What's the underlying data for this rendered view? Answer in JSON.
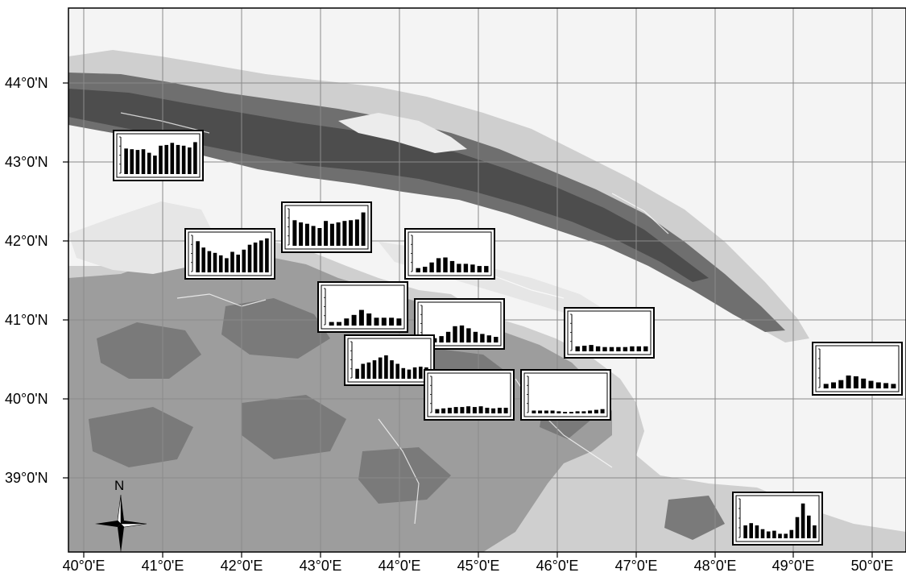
{
  "map": {
    "lat_labels": [
      "44°0'N",
      "43°0'N",
      "42°0'N",
      "41°0'N",
      "40°0'N",
      "39°0'N"
    ],
    "lon_labels": [
      "40°0'E",
      "41°0'E",
      "42°0'E",
      "43°0'E",
      "44°0'E",
      "45°0'E",
      "46°0'E",
      "47°0'E",
      "48°0'E",
      "49°0'E",
      "50°0'E"
    ],
    "north_arrow_label": "N",
    "colors": {
      "lowland": "#f4f4f4",
      "foothill": "#cfcfcf",
      "upland": "#9d9d9d",
      "mountain": "#6f6f6f",
      "peak": "#4d4d4d",
      "grid": "#8a8a8a",
      "bars": "#000000"
    }
  },
  "station_charts": [
    {
      "id": "st1",
      "values": [
        0.72,
        0.7,
        0.68,
        0.7,
        0.6,
        0.52,
        0.8,
        0.82,
        0.88,
        0.82,
        0.8,
        0.75,
        0.9
      ]
    },
    {
      "id": "st2",
      "values": [
        0.88,
        0.7,
        0.6,
        0.55,
        0.48,
        0.4,
        0.58,
        0.5,
        0.64,
        0.78,
        0.84,
        0.9,
        0.96
      ]
    },
    {
      "id": "st3",
      "values": [
        0.72,
        0.66,
        0.62,
        0.56,
        0.5,
        0.7,
        0.62,
        0.66,
        0.7,
        0.72,
        0.74,
        0.94
      ]
    },
    {
      "id": "st4",
      "values": [
        0.12,
        0.16,
        0.28,
        0.4,
        0.42,
        0.32,
        0.24,
        0.24,
        0.22,
        0.18,
        0.18
      ]
    },
    {
      "id": "st5",
      "values": [
        0.1,
        0.1,
        0.2,
        0.3,
        0.44,
        0.34,
        0.22,
        0.22,
        0.22,
        0.2
      ]
    },
    {
      "id": "st6",
      "values": [
        0.1,
        0.12,
        0.18,
        0.3,
        0.46,
        0.48,
        0.4,
        0.3,
        0.24,
        0.2,
        0.16
      ]
    },
    {
      "id": "st7",
      "values": [
        0.28,
        0.42,
        0.46,
        0.52,
        0.6,
        0.66,
        0.52,
        0.42,
        0.3,
        0.26,
        0.32,
        0.34,
        0.32
      ]
    },
    {
      "id": "st8",
      "values": [
        0.12,
        0.14,
        0.16,
        0.18,
        0.18,
        0.2,
        0.18,
        0.2,
        0.16,
        0.14,
        0.16,
        0.16
      ]
    },
    {
      "id": "st9",
      "values": [
        0.14,
        0.16,
        0.18,
        0.14,
        0.12,
        0.12,
        0.12,
        0.12,
        0.14,
        0.14,
        0.14
      ]
    },
    {
      "id": "st10",
      "values": [
        0.12,
        0.16,
        0.22,
        0.34,
        0.32,
        0.26,
        0.2,
        0.16,
        0.14,
        0.12
      ]
    },
    {
      "id": "st11",
      "values": [
        0.08,
        0.08,
        0.08,
        0.08,
        0.06,
        0.04,
        0.04,
        0.06,
        0.06,
        0.08,
        0.1,
        0.12
      ]
    },
    {
      "id": "st12",
      "values": [
        0.34,
        0.4,
        0.34,
        0.24,
        0.18,
        0.2,
        0.12,
        0.12,
        0.22,
        0.56,
        0.92,
        0.6,
        0.34
      ]
    }
  ]
}
